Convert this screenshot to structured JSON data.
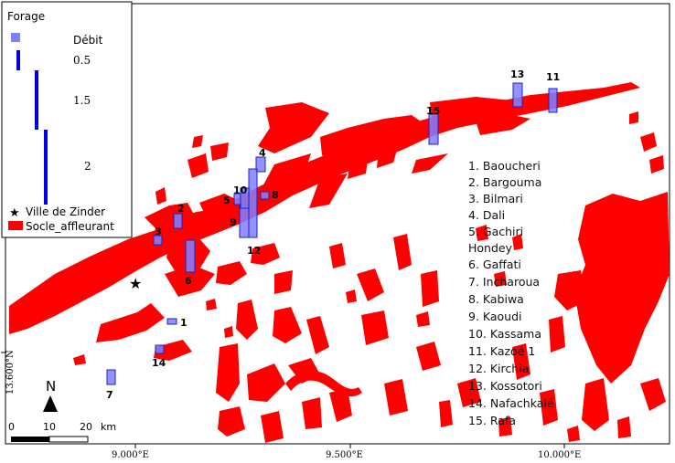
{
  "legend": {
    "title": "Forage",
    "debit_label": "Débit",
    "debit_values": [
      "0.5",
      "1.5",
      "2"
    ],
    "city_label": "Ville de Zinder",
    "socle_label": "Socle_affleurant"
  },
  "well_names_header": "1. Baoucheri",
  "well_names": [
    "1. Baoucheri",
    "2. Bargouma",
    "3. Bilmari",
    "4. Dali",
    "5. Gachiri",
    "Hondey",
    "6. Gaffati",
    "7. Incharoua",
    "8. Kabiwa",
    "9. Kaoudi",
    "10. Kassama",
    "11. Kazoé 1",
    "12. Kirchia",
    "13. Kossotori",
    "14. Nafachkalé",
    "15. Rafa"
  ],
  "site_labels": [
    "1",
    "2",
    "3",
    "4",
    "5",
    "6",
    "7",
    "8",
    "9",
    "10",
    "11",
    "12",
    "13",
    "14",
    "15"
  ],
  "axis": {
    "x_ticks": [
      "9.000°E",
      "9.500°E",
      "10.000°E"
    ],
    "y_tick": "13.600°N"
  },
  "north_label": "N",
  "scale": {
    "labels": [
      "0",
      "10",
      "20"
    ],
    "unit": "km"
  },
  "colors": {
    "socle": "#ff0000",
    "well_fill": "#8080ff",
    "well_stroke": "#2020c0",
    "debit_bar": "#0000e0"
  }
}
